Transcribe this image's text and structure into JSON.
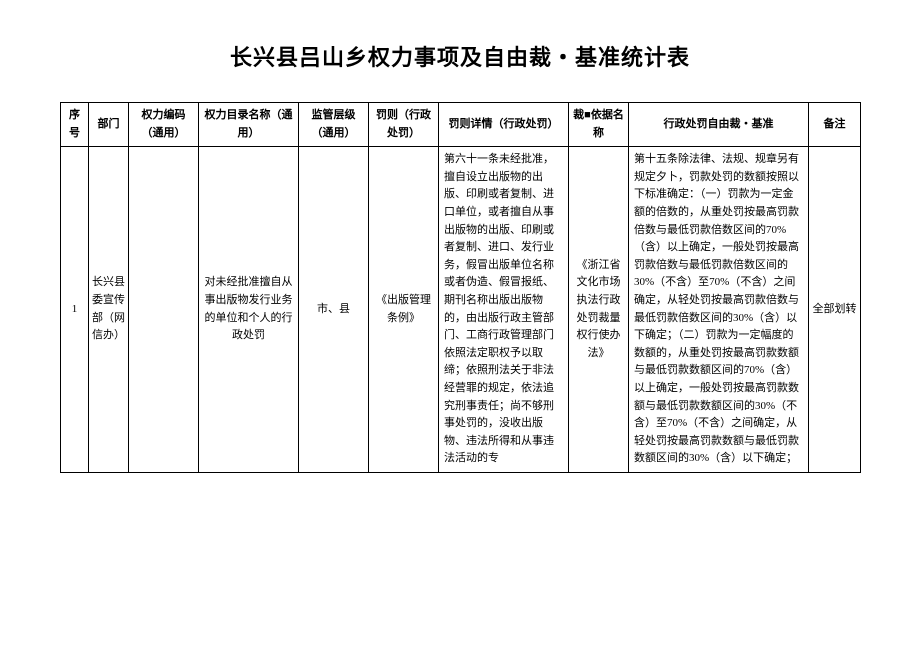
{
  "title": "长兴县吕山乡权力事项及自由裁・基准统计表",
  "headers": {
    "seq": "序号",
    "dept": "部门",
    "code": "权力编码（通用）",
    "name": "权力目录名称（通用）",
    "level": "监管层级（通用）",
    "penalty": "罚则（行政处罚）",
    "detail": "罚则详情（行政处罚）",
    "basis": "裁■依据名称",
    "standard": "行政处罚自由裁・基准",
    "remark": "备注"
  },
  "rows": [
    {
      "seq": "1",
      "dept": "长兴县委宣传部（网信办）",
      "code": "",
      "name": "对未经批准擅自从事出版物发行业务的单位和个人的行政处罚",
      "level": "市、县",
      "penalty": "《出版管理条例》",
      "detail": "第六十一条未经批准，擅自设立出版物的出版、印刷或者复制、进口单位，或者擅自从事出版物的出版、印刷或者复制、进口、发行业务，假冒出版单位名称或者伪造、假冒报纸、期刊名称出版出版物的，由出版行政主管部门、工商行政管理部门依照法定职权予以取缔；依照刑法关于非法经营罪的规定，依法追究刑事责任；尚不够刑事处罚的，没收出版物、违法所得和从事违法活动的专",
      "basis": "《浙江省文化市场执法行政处罚裁量权行使办法》",
      "standard": "第十五条除法律、法规、规章另有规定夕卜，罚款处罚的数额按照以下标准确定：（一）罚款为一定金额的倍数的，从重处罚按最高罚款倍数与最低罚款倍数区间的70%（含）以上确定，一般处罚按最高罚款倍数与最低罚款倍数区间的30%（不含）至70%（不含）之间确定，从轻处罚按最高罚款倍数与最低罚款倍数区间的30%（含）以下确定；（二）罚款为一定幅度的数额的，从重处罚按最高罚款数额与最低罚款数额区间的70%（含）以上确定，一般处罚按最高罚款数额与最低罚款数额区间的30%（不含）至70%（不含）之间确定，从轻处罚按最高罚款数额与最低罚款数额区间的30%（含）以下确定；",
      "remark": "全部划转"
    }
  ]
}
